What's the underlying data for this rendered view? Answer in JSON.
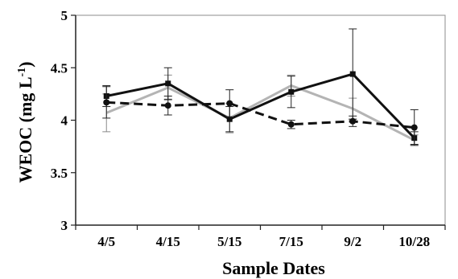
{
  "chart_data": {
    "type": "line",
    "title": "",
    "xlabel": "Sample Dates",
    "ylabel": "WEOC (mg L",
    "ylabel_superscript": "-1",
    "ylabel_close": ")",
    "categories": [
      "4/5",
      "4/15",
      "5/15",
      "7/15",
      "9/2",
      "10/28"
    ],
    "ylim": [
      3,
      5
    ],
    "yticks": [
      "3",
      "3.5",
      "4",
      "4.5",
      "5"
    ],
    "grid": false,
    "legend": "none",
    "series": [
      {
        "color": "#111111",
        "line_style": "solid",
        "marker": "square",
        "values": [
          4.23,
          4.35,
          4.01,
          4.27,
          4.44,
          3.83
        ],
        "error": [
          0.1,
          0.15,
          0.12,
          0.15,
          0.43,
          0.06
        ]
      },
      {
        "color": "#b4b4b4",
        "line_style": "solid",
        "marker": "none",
        "values": [
          4.07,
          4.31,
          4.02,
          4.33,
          4.11,
          3.81
        ],
        "error": [
          0.18,
          0.12,
          0.14,
          0.1,
          0.1,
          0.05
        ]
      },
      {
        "color": "#111111",
        "line_style": "dashed",
        "marker": "circle",
        "values": [
          4.17,
          4.14,
          4.16,
          3.96,
          3.99,
          3.93
        ],
        "error": [
          0.15,
          0.09,
          0.13,
          0.04,
          0.05,
          0.17
        ]
      }
    ]
  }
}
